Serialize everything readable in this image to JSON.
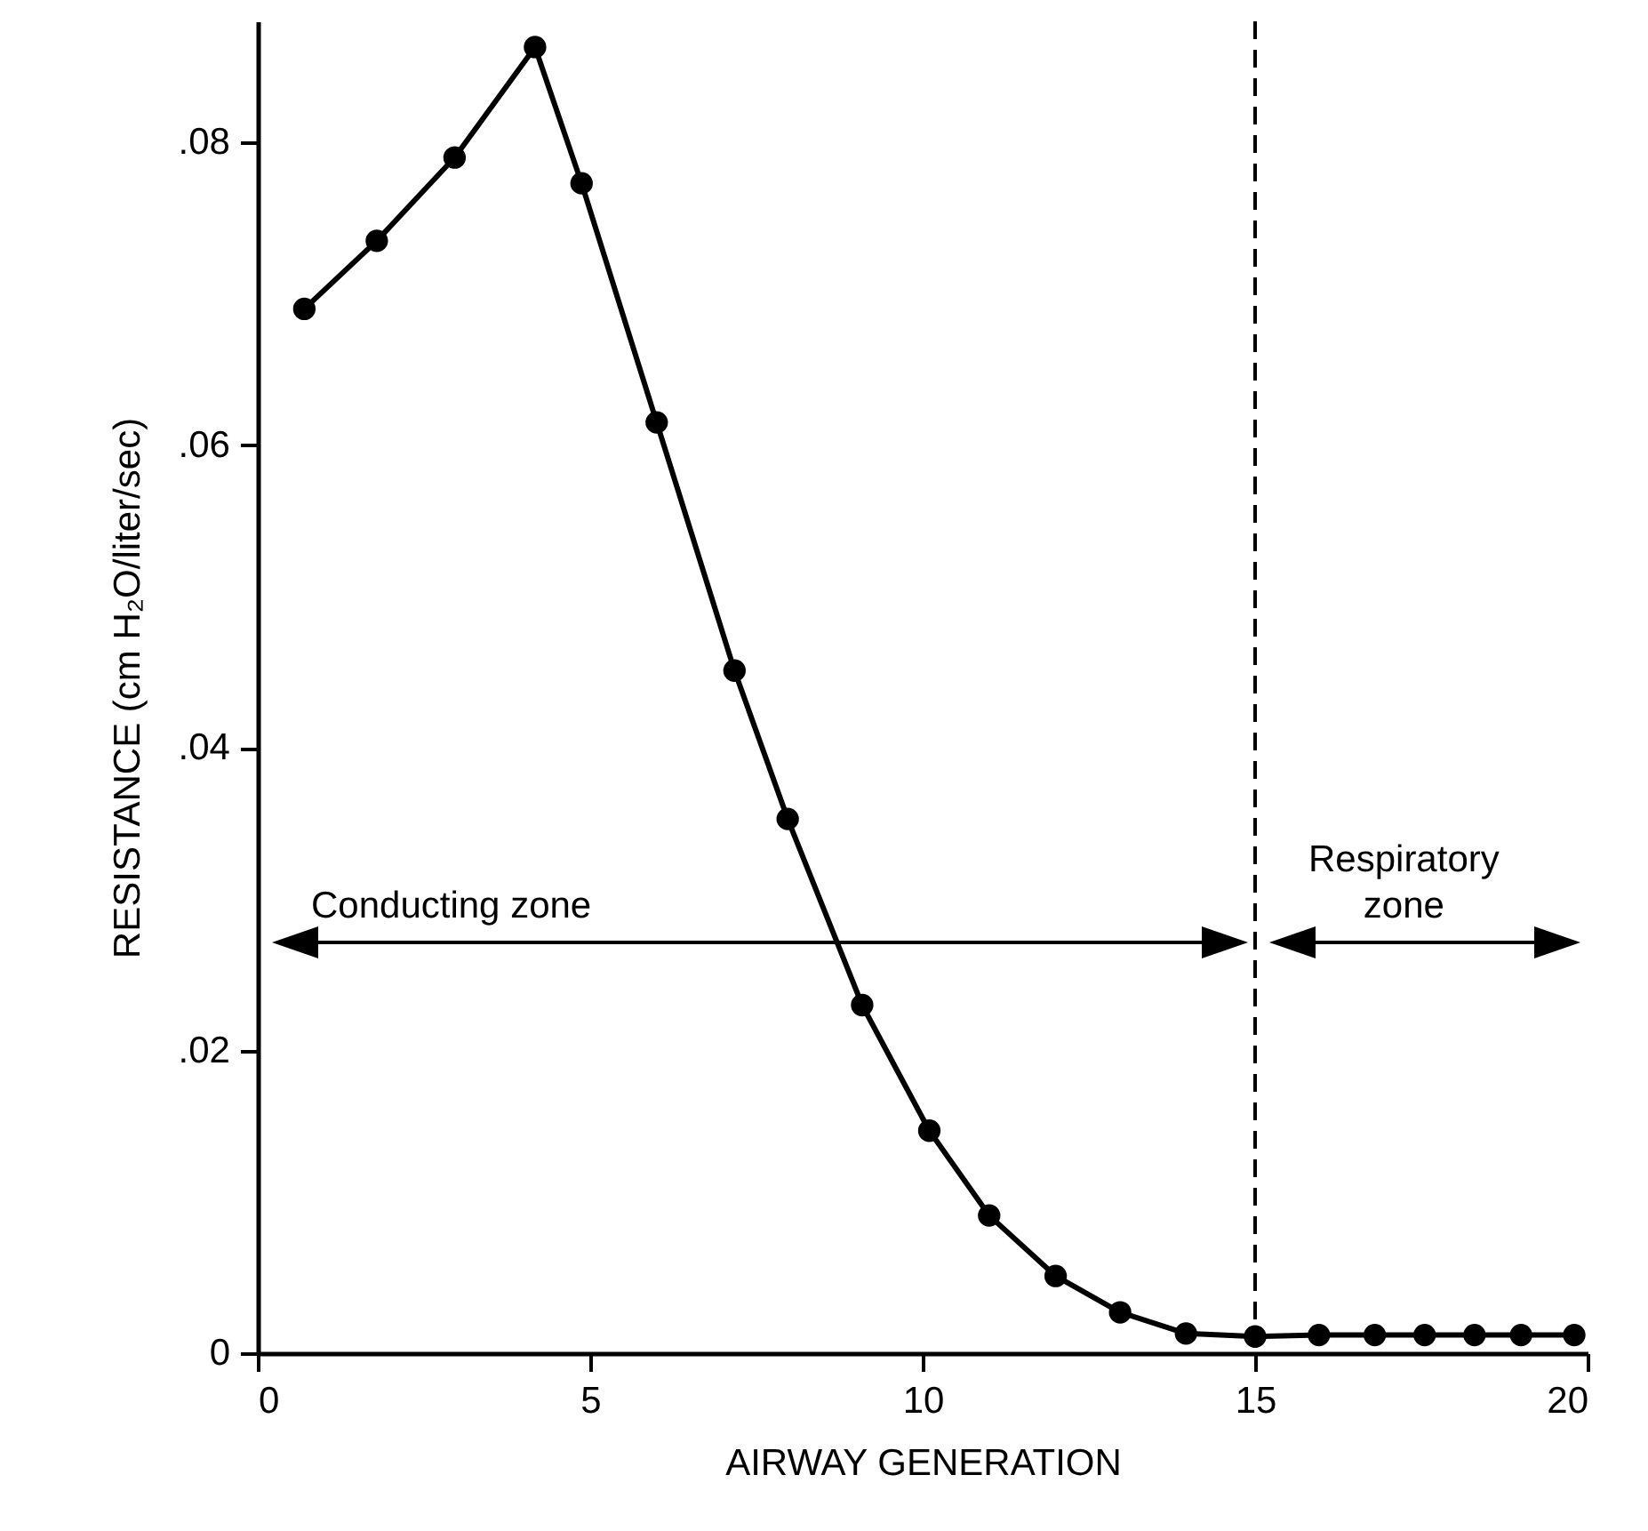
{
  "chart_data": {
    "type": "line",
    "xlabel": "AIRWAY GENERATION",
    "ylabel": "RESISTANCE (cm H₂O/liter/sec)",
    "x": [
      0.7,
      1.79,
      2.96,
      4.17,
      4.87,
      6.0,
      7.17,
      7.97,
      9.09,
      10.1,
      11.0,
      12.0,
      12.97,
      13.96,
      15.0,
      15.96,
      16.8,
      17.55,
      18.3,
      19.0,
      19.8
    ],
    "values": [
      0.069,
      0.0735,
      0.079,
      0.0863,
      0.0773,
      0.0615,
      0.0451,
      0.0353,
      0.023,
      0.0147,
      0.0091,
      0.0051,
      0.0027,
      0.0013,
      0.0011,
      0.0012,
      0.0012,
      0.0012,
      0.0012,
      0.0012,
      0.0012
    ],
    "color": "#000000",
    "marker": "circle",
    "line_style": "solid",
    "xlim": [
      0,
      20
    ],
    "xticks": [
      0,
      5,
      10,
      15,
      20
    ],
    "ylim": [
      0,
      0.088
    ],
    "yticks": [
      0,
      {
        "value": 0.02,
        "label": ".02"
      },
      {
        "value": 0.04,
        "label": ".04"
      },
      {
        "value": 0.06,
        "label": ".06"
      },
      {
        "value": 0.08,
        "label": ".08"
      }
    ],
    "ref_lines": [
      {
        "axis": "x",
        "value": 15,
        "color": "#000000",
        "line_style": "dashed"
      }
    ],
    "annotations": [
      "Conducting zone",
      "Respiratory\nzone"
    ]
  }
}
